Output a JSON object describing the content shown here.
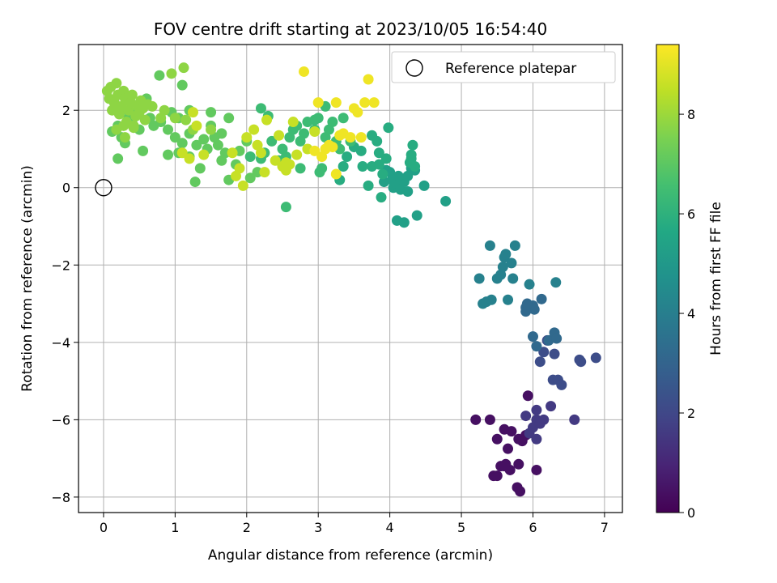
{
  "chart_data": {
    "type": "scatter",
    "title": "FOV centre drift starting at 2023/10/05 16:54:40",
    "xlabel": "Angular distance from reference (arcmin)",
    "ylabel": "Rotation from reference (arcmin)",
    "xlim": [
      -0.35,
      7.25
    ],
    "ylim": [
      -8.4,
      3.7
    ],
    "xticks": [
      0,
      1,
      2,
      3,
      4,
      5,
      6,
      7
    ],
    "yticks": [
      -8,
      -6,
      -4,
      -2,
      0,
      2
    ],
    "grid": true,
    "legend": {
      "placement": "top-right",
      "entries": [
        "Reference platepar"
      ]
    },
    "reference_point": {
      "x": 0,
      "y": 0,
      "label": "Reference platepar"
    },
    "colorbar": {
      "label": "Hours from first FF file",
      "colormap": "viridis",
      "min": 0,
      "max": 9.4,
      "ticks": [
        0,
        2,
        4,
        6,
        8
      ]
    },
    "point_series": [
      {
        "hours": 0.4,
        "points": [
          [
            5.2,
            -6.0
          ],
          [
            5.4,
            -6.0
          ],
          [
            5.5,
            -6.5
          ],
          [
            5.6,
            -6.25
          ],
          [
            5.7,
            -6.3
          ],
          [
            5.8,
            -6.5
          ],
          [
            5.85,
            -6.55
          ],
          [
            5.9,
            -6.4
          ],
          [
            5.55,
            -7.2
          ],
          [
            5.62,
            -7.15
          ],
          [
            5.68,
            -7.3
          ],
          [
            5.8,
            -7.15
          ],
          [
            5.45,
            -7.45
          ],
          [
            5.78,
            -7.75
          ],
          [
            5.82,
            -7.85
          ],
          [
            6.05,
            -7.3
          ],
          [
            5.93,
            -5.38
          ],
          [
            5.65,
            -6.75
          ],
          [
            5.6,
            -7.2
          ],
          [
            5.5,
            -7.45
          ]
        ]
      },
      {
        "hours": 1.6,
        "points": [
          [
            5.9,
            -5.9
          ],
          [
            6.05,
            -6.0
          ],
          [
            6.15,
            -6.0
          ],
          [
            6.0,
            -6.2
          ],
          [
            6.05,
            -6.5
          ],
          [
            6.25,
            -5.65
          ],
          [
            6.58,
            -6.0
          ],
          [
            6.05,
            -5.75
          ],
          [
            5.95,
            -6.35
          ],
          [
            6.1,
            -6.1
          ]
        ]
      },
      {
        "hours": 2.2,
        "points": [
          [
            6.28,
            -4.97
          ],
          [
            6.35,
            -4.97
          ],
          [
            6.4,
            -5.1
          ],
          [
            6.15,
            -4.25
          ],
          [
            6.1,
            -4.5
          ],
          [
            6.65,
            -4.45
          ],
          [
            6.67,
            -4.5
          ],
          [
            6.88,
            -4.4
          ],
          [
            6.2,
            -3.95
          ],
          [
            6.3,
            -4.3
          ]
        ]
      },
      {
        "hours": 3.2,
        "points": [
          [
            6.0,
            -3.85
          ],
          [
            6.05,
            -4.1
          ],
          [
            6.22,
            -3.95
          ],
          [
            6.3,
            -3.75
          ],
          [
            6.33,
            -3.9
          ],
          [
            5.9,
            -3.1
          ],
          [
            6.0,
            -3.05
          ],
          [
            6.02,
            -3.15
          ],
          [
            5.9,
            -3.2
          ],
          [
            6.12,
            -2.88
          ],
          [
            5.92,
            -3.0
          ]
        ]
      },
      {
        "hours": 4.1,
        "points": [
          [
            5.25,
            -2.35
          ],
          [
            5.3,
            -3.0
          ],
          [
            5.35,
            -2.95
          ],
          [
            5.42,
            -2.9
          ],
          [
            5.5,
            -2.35
          ],
          [
            5.55,
            -2.25
          ],
          [
            5.58,
            -2.05
          ],
          [
            5.6,
            -1.8
          ],
          [
            5.65,
            -2.9
          ],
          [
            5.7,
            -1.95
          ],
          [
            5.72,
            -2.35
          ],
          [
            5.4,
            -1.5
          ],
          [
            5.75,
            -1.5
          ],
          [
            5.95,
            -2.5
          ],
          [
            6.32,
            -2.45
          ],
          [
            5.62,
            -1.72
          ]
        ]
      },
      {
        "hours": 5.3,
        "points": [
          [
            3.95,
            0.45
          ],
          [
            4.0,
            0.4
          ],
          [
            4.05,
            0.0
          ],
          [
            4.1,
            0.05
          ],
          [
            4.15,
            -0.05
          ],
          [
            4.2,
            0.15
          ],
          [
            4.25,
            0.3
          ],
          [
            4.3,
            0.5
          ],
          [
            4.35,
            0.45
          ],
          [
            4.1,
            -0.85
          ],
          [
            4.2,
            -0.9
          ],
          [
            4.38,
            -0.72
          ],
          [
            4.48,
            0.05
          ],
          [
            4.78,
            -0.35
          ],
          [
            3.92,
            0.15
          ],
          [
            4.03,
            0.2
          ],
          [
            4.25,
            -0.1
          ],
          [
            4.12,
            0.3
          ]
        ]
      },
      {
        "hours": 5.8,
        "points": [
          [
            3.3,
            0.2
          ],
          [
            3.35,
            0.55
          ],
          [
            3.4,
            0.8
          ],
          [
            3.5,
            1.05
          ],
          [
            3.6,
            0.95
          ],
          [
            3.75,
            0.55
          ],
          [
            3.85,
            0.6
          ],
          [
            3.9,
            0.35
          ],
          [
            3.95,
            0.75
          ],
          [
            3.98,
            1.55
          ],
          [
            3.75,
            1.35
          ],
          [
            3.82,
            1.2
          ],
          [
            3.85,
            0.9
          ],
          [
            4.3,
            0.75
          ],
          [
            4.32,
            1.1
          ],
          [
            4.28,
            0.65
          ],
          [
            4.3,
            0.85
          ],
          [
            4.35,
            0.55
          ],
          [
            3.88,
            -0.25
          ],
          [
            3.7,
            0.05
          ],
          [
            3.62,
            0.55
          ]
        ]
      },
      {
        "hours": 6.4,
        "points": [
          [
            2.05,
            0.8
          ],
          [
            2.2,
            0.75
          ],
          [
            2.25,
            0.9
          ],
          [
            2.35,
            1.2
          ],
          [
            2.5,
            1.0
          ],
          [
            2.55,
            0.8
          ],
          [
            2.6,
            1.3
          ],
          [
            2.65,
            1.5
          ],
          [
            2.7,
            1.6
          ],
          [
            2.75,
            0.5
          ],
          [
            2.8,
            1.4
          ],
          [
            2.85,
            1.7
          ],
          [
            2.95,
            1.5
          ],
          [
            3.0,
            1.8
          ],
          [
            3.05,
            0.5
          ],
          [
            3.1,
            1.3
          ],
          [
            3.15,
            1.5
          ],
          [
            3.2,
            1.7
          ],
          [
            3.25,
            1.2
          ],
          [
            3.3,
            1.0
          ],
          [
            3.35,
            1.8
          ],
          [
            3.45,
            1.2
          ],
          [
            3.1,
            2.1
          ],
          [
            2.55,
            -0.5
          ],
          [
            2.45,
            0.7
          ],
          [
            3.02,
            0.4
          ],
          [
            2.75,
            1.2
          ],
          [
            2.2,
            2.05
          ],
          [
            2.3,
            1.85
          ],
          [
            2.95,
            1.75
          ]
        ]
      },
      {
        "hours": 7.1,
        "points": [
          [
            0.7,
            1.6
          ],
          [
            0.8,
            1.7
          ],
          [
            0.9,
            1.5
          ],
          [
            1.0,
            1.3
          ],
          [
            1.05,
            0.9
          ],
          [
            1.1,
            1.15
          ],
          [
            1.2,
            0.8
          ],
          [
            1.3,
            1.1
          ],
          [
            1.4,
            1.25
          ],
          [
            1.45,
            1.0
          ],
          [
            1.5,
            1.6
          ],
          [
            1.55,
            1.3
          ],
          [
            1.6,
            1.1
          ],
          [
            1.65,
            0.7
          ],
          [
            1.7,
            0.9
          ],
          [
            1.75,
            1.8
          ],
          [
            1.85,
            0.6
          ],
          [
            1.9,
            0.95
          ],
          [
            2.0,
            1.2
          ],
          [
            2.05,
            0.25
          ],
          [
            1.2,
            2.0
          ],
          [
            1.1,
            2.65
          ],
          [
            1.05,
            1.8
          ],
          [
            1.28,
            0.15
          ],
          [
            0.95,
            1.95
          ],
          [
            1.5,
            1.95
          ],
          [
            1.75,
            0.2
          ],
          [
            2.15,
            0.4
          ],
          [
            0.9,
            0.85
          ],
          [
            1.35,
            0.5
          ],
          [
            1.65,
            1.4
          ],
          [
            1.2,
            1.4
          ],
          [
            0.12,
            1.45
          ],
          [
            0.2,
            1.6
          ],
          [
            0.25,
            1.3
          ],
          [
            0.35,
            1.8
          ],
          [
            0.45,
            1.9
          ],
          [
            0.5,
            1.5
          ],
          [
            0.55,
            2.2
          ],
          [
            0.6,
            2.3
          ],
          [
            0.55,
            0.95
          ],
          [
            0.2,
            0.75
          ],
          [
            0.3,
            1.15
          ],
          [
            0.65,
            1.8
          ],
          [
            0.15,
            2.2
          ],
          [
            0.25,
            2.0
          ],
          [
            0.4,
            1.75
          ],
          [
            0.78,
            2.9
          ]
        ]
      },
      {
        "hours": 7.8,
        "points": [
          [
            0.05,
            2.5
          ],
          [
            0.08,
            2.3
          ],
          [
            0.1,
            2.6
          ],
          [
            0.12,
            2.0
          ],
          [
            0.15,
            2.2
          ],
          [
            0.18,
            2.7
          ],
          [
            0.2,
            2.4
          ],
          [
            0.22,
            1.9
          ],
          [
            0.25,
            2.1
          ],
          [
            0.28,
            2.5
          ],
          [
            0.3,
            2.3
          ],
          [
            0.32,
            1.7
          ],
          [
            0.35,
            2.0
          ],
          [
            0.38,
            2.2
          ],
          [
            0.4,
            2.4
          ],
          [
            0.42,
            1.6
          ],
          [
            0.45,
            1.85
          ],
          [
            0.48,
            2.1
          ],
          [
            0.5,
            1.95
          ],
          [
            0.52,
            2.25
          ],
          [
            0.55,
            2.05
          ],
          [
            0.58,
            1.75
          ],
          [
            0.62,
            2.15
          ],
          [
            0.68,
            2.1
          ],
          [
            0.8,
            1.8
          ],
          [
            0.85,
            2.0
          ],
          [
            1.0,
            1.8
          ],
          [
            1.15,
            1.75
          ],
          [
            1.12,
            3.1
          ],
          [
            0.95,
            2.95
          ],
          [
            1.25,
            1.5
          ],
          [
            1.5,
            1.5
          ],
          [
            0.3,
            1.3
          ],
          [
            0.28,
            1.6
          ],
          [
            0.42,
            1.55
          ],
          [
            0.18,
            1.5
          ]
        ]
      },
      {
        "hours": 8.6,
        "points": [
          [
            1.1,
            0.9
          ],
          [
            1.2,
            0.75
          ],
          [
            1.3,
            1.6
          ],
          [
            1.4,
            0.85
          ],
          [
            1.8,
            0.9
          ],
          [
            1.9,
            0.5
          ],
          [
            2.0,
            1.3
          ],
          [
            2.1,
            1.5
          ],
          [
            2.15,
            1.1
          ],
          [
            2.2,
            0.9
          ],
          [
            2.28,
            1.75
          ],
          [
            2.4,
            0.7
          ],
          [
            2.45,
            1.35
          ],
          [
            2.5,
            0.55
          ],
          [
            2.55,
            0.45
          ],
          [
            2.6,
            0.6
          ],
          [
            2.65,
            1.7
          ],
          [
            2.7,
            0.85
          ],
          [
            2.85,
            1.0
          ],
          [
            2.95,
            1.45
          ],
          [
            1.95,
            0.05
          ],
          [
            1.25,
            1.95
          ],
          [
            1.85,
            0.3
          ],
          [
            2.25,
            0.4
          ],
          [
            2.55,
            0.65
          ]
        ]
      },
      {
        "hours": 9.2,
        "points": [
          [
            2.8,
            3.0
          ],
          [
            3.0,
            2.2
          ],
          [
            3.05,
            0.8
          ],
          [
            3.15,
            1.1
          ],
          [
            3.2,
            1.05
          ],
          [
            3.25,
            2.2
          ],
          [
            3.3,
            1.35
          ],
          [
            3.35,
            1.4
          ],
          [
            3.45,
            1.3
          ],
          [
            3.5,
            2.05
          ],
          [
            3.55,
            1.95
          ],
          [
            3.6,
            1.3
          ],
          [
            3.65,
            2.2
          ],
          [
            3.7,
            2.8
          ],
          [
            3.78,
            2.2
          ],
          [
            3.25,
            0.35
          ],
          [
            3.1,
            1.0
          ],
          [
            2.95,
            0.95
          ]
        ]
      }
    ]
  }
}
